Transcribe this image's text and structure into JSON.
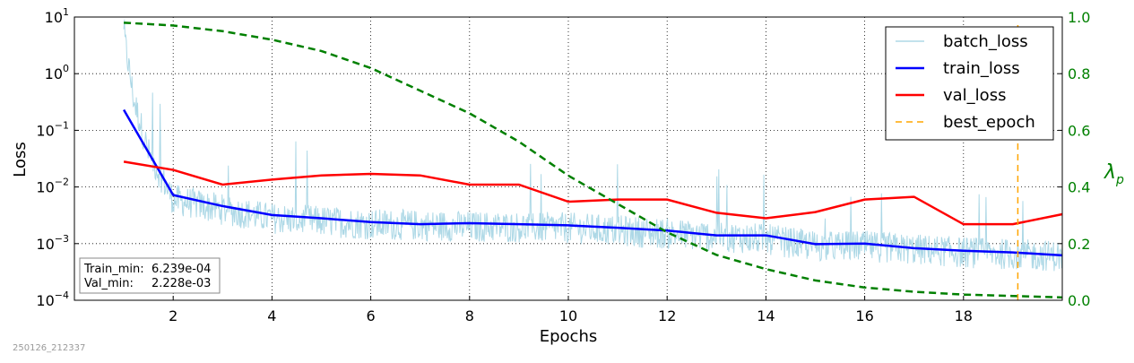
{
  "chart_data": {
    "type": "line",
    "title": "",
    "xlabel": "Epochs",
    "ylabel": "Loss",
    "ylabel_right": "λp",
    "yscale": "log",
    "xlim": [
      0,
      20
    ],
    "ylim": [
      0.0001,
      10
    ],
    "ylim_right": [
      0.0,
      1.0
    ],
    "grid": true,
    "legend_position": "top-right",
    "x_ticks": [
      2,
      4,
      6,
      8,
      10,
      12,
      14,
      16,
      18
    ],
    "y_ticks": [
      {
        "value": 0.0001,
        "base": "10",
        "exp": "−4"
      },
      {
        "value": 0.001,
        "base": "10",
        "exp": "−3"
      },
      {
        "value": 0.01,
        "base": "10",
        "exp": "−2"
      },
      {
        "value": 0.1,
        "base": "10",
        "exp": "−1"
      },
      {
        "value": 1,
        "base": "10",
        "exp": "0"
      },
      {
        "value": 10,
        "base": "10",
        "exp": "1"
      }
    ],
    "y_right_ticks": [
      "0.0",
      "0.2",
      "0.4",
      "0.6",
      "0.8",
      "1.0"
    ],
    "colors": {
      "batch_loss": "#add8e6",
      "train_loss": "#0000ff",
      "val_loss": "#ff0000",
      "best_epoch": "#ffa500",
      "lambda": "#008000"
    },
    "series": [
      {
        "name": "train_loss",
        "x": [
          1,
          2,
          3,
          4,
          5,
          6,
          7,
          8,
          9,
          10,
          11,
          12,
          13,
          14,
          15,
          16,
          17,
          18,
          19,
          20
        ],
        "values": [
          0.23,
          0.0072,
          0.0046,
          0.0032,
          0.0028,
          0.0024,
          0.0022,
          0.0023,
          0.0022,
          0.0021,
          0.0019,
          0.0017,
          0.0014,
          0.0014,
          0.00098,
          0.001,
          0.00083,
          0.00075,
          0.0007,
          0.00062
        ]
      },
      {
        "name": "val_loss",
        "x": [
          1,
          2,
          3,
          4,
          5,
          6,
          7,
          8,
          9,
          10,
          11,
          12,
          13,
          14,
          15,
          16,
          17,
          18,
          19,
          20
        ],
        "values": [
          0.028,
          0.02,
          0.011,
          0.0135,
          0.016,
          0.017,
          0.016,
          0.011,
          0.011,
          0.0055,
          0.006,
          0.006,
          0.0035,
          0.0028,
          0.0036,
          0.006,
          0.0067,
          0.0022,
          0.0022,
          0.0033
        ]
      },
      {
        "name": "λp",
        "axis": "right",
        "x": [
          1,
          2,
          3,
          4,
          5,
          6,
          7,
          8,
          9,
          10,
          11,
          12,
          13,
          14,
          15,
          16,
          17,
          18,
          19,
          20
        ],
        "values": [
          0.98,
          0.97,
          0.95,
          0.92,
          0.88,
          0.82,
          0.74,
          0.66,
          0.56,
          0.44,
          0.34,
          0.24,
          0.16,
          0.11,
          0.07,
          0.045,
          0.03,
          0.02,
          0.015,
          0.01
        ]
      },
      {
        "name": "batch_loss",
        "x_range": [
          1,
          20
        ],
        "values_envelope": [
          [
            1,
            5.0
          ],
          [
            1.2,
            0.35
          ],
          [
            1.5,
            0.04
          ],
          [
            2,
            0.006
          ],
          [
            3,
            0.004
          ],
          [
            4,
            0.0028
          ],
          [
            6,
            0.0022
          ],
          [
            8,
            0.002
          ],
          [
            10,
            0.0019
          ],
          [
            12,
            0.0015
          ],
          [
            14,
            0.0012
          ],
          [
            15,
            0.0009
          ],
          [
            16,
            0.0009
          ],
          [
            18,
            0.0007
          ],
          [
            20,
            0.0006
          ]
        ]
      },
      {
        "name": "best_epoch",
        "x": [
          19.1,
          19.1
        ],
        "values": [
          0.0001,
          10
        ]
      }
    ],
    "legend": [
      "batch_loss",
      "train_loss",
      "val_loss",
      "best_epoch"
    ],
    "annotation": {
      "train_min_label": "Train_min:",
      "train_min_value": "6.239e-04",
      "val_min_label": "Val_min:",
      "val_min_value": "2.228e-03"
    }
  },
  "footer_stamp": "250126_212337"
}
